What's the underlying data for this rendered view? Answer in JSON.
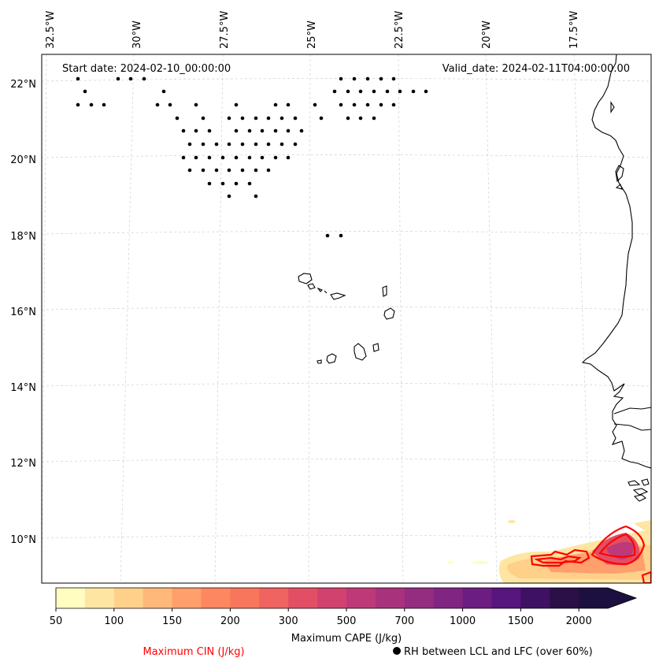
{
  "map": {
    "start_label": "Start date: 2024-02-10_00:00:00",
    "valid_label": "Valid_date: 2024-02-11T04:00:00.00",
    "lon_labels": [
      "32.5°W",
      "30°W",
      "27.5°W",
      "25°W",
      "22.5°W",
      "20°W",
      "17.5°W"
    ],
    "lat_labels": [
      "22°N",
      "20°N",
      "18°N",
      "16°N",
      "14°N",
      "12°N",
      "10°N"
    ]
  },
  "colorbar": {
    "ticks": [
      "50",
      "100",
      "150",
      "200",
      "300",
      "500",
      "700",
      "1000",
      "1500",
      "2000"
    ],
    "colors": [
      "#fffdbf",
      "#fee6a2",
      "#fed08a",
      "#feb879",
      "#fe9f6c",
      "#fc8761",
      "#f8765c",
      "#ef6360",
      "#e24e65",
      "#d1426f",
      "#bd3977",
      "#a9327d",
      "#942c80",
      "#802582",
      "#6c1d81",
      "#57157e",
      "#3e1165",
      "#2a1046",
      "#1c1040"
    ],
    "label": "Maximum CAPE (J/kg)"
  },
  "legend": {
    "cin_label": "Maximum CIN (J/kg)",
    "rh_label": "RH between LCL and LFC (over 60%)",
    "cin_color": "#ff0000"
  }
}
